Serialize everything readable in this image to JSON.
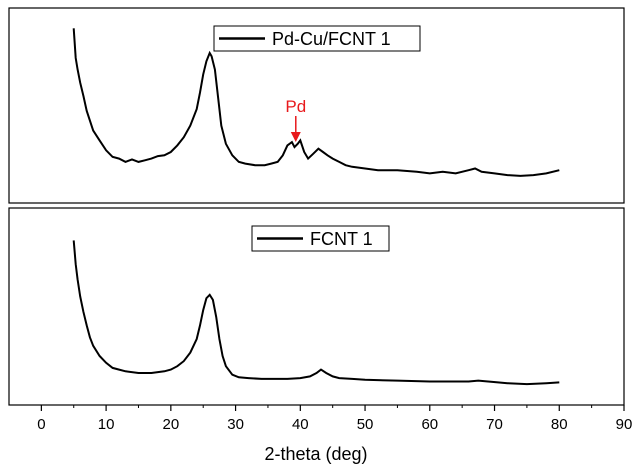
{
  "chart_data": {
    "type": "line",
    "xlabel": "2-theta (deg)",
    "xlim": [
      -5,
      90
    ],
    "x_ticks": [
      0,
      10,
      20,
      30,
      40,
      50,
      60,
      70,
      80,
      90
    ],
    "x_tick_labels": [
      "0",
      "10",
      "20",
      "30",
      "40",
      "50",
      "60",
      "70",
      "80",
      "90"
    ],
    "y_ticks_shown": false,
    "layout": "two stacked panels sharing x-axis",
    "line_color": "#000000",
    "annotation_color": "#e8191c",
    "panels": [
      {
        "legend": "Pd-Cu/FCNT 1",
        "legend_position": "top-center",
        "annotation": {
          "text": "Pd",
          "x": 39.3,
          "arrow": "down"
        },
        "ylim": [
          0,
          1
        ],
        "series": [
          {
            "name": "Pd-Cu/FCNT 1",
            "x": [
              5.0,
              5.3,
              5.6,
              6.0,
              6.5,
              7.0,
              7.5,
              8.0,
              9.0,
              10.0,
              11.0,
              12.0,
              13.0,
              14.0,
              15.0,
              16.0,
              17.0,
              18.0,
              19.0,
              20.0,
              21.0,
              22.0,
              23.0,
              24.0,
              24.5,
              25.0,
              25.5,
              25.8,
              26.0,
              26.3,
              26.8,
              27.3,
              27.8,
              28.5,
              29.5,
              30.5,
              31.5,
              33.0,
              34.5,
              35.5,
              36.5,
              37.3,
              38.0,
              38.7,
              39.1,
              39.6,
              40.0,
              40.6,
              41.2,
              42.0,
              42.8,
              43.5,
              44.2,
              45.0,
              46.0,
              47.0,
              48.0,
              50.0,
              52.0,
              55.0,
              58.0,
              60.0,
              62.0,
              64.0,
              66.0,
              67.0,
              68.0,
              70.0,
              72.0,
              74.0,
              76.0,
              78.0,
              80.0
            ],
            "y": [
              0.95,
              0.77,
              0.7,
              0.62,
              0.54,
              0.45,
              0.39,
              0.33,
              0.27,
              0.21,
              0.17,
              0.16,
              0.14,
              0.155,
              0.14,
              0.15,
              0.16,
              0.175,
              0.18,
              0.2,
              0.24,
              0.29,
              0.36,
              0.46,
              0.56,
              0.67,
              0.75,
              0.78,
              0.8,
              0.78,
              0.7,
              0.53,
              0.36,
              0.25,
              0.18,
              0.14,
              0.13,
              0.12,
              0.12,
              0.13,
              0.14,
              0.18,
              0.24,
              0.26,
              0.23,
              0.25,
              0.27,
              0.2,
              0.16,
              0.19,
              0.22,
              0.2,
              0.18,
              0.16,
              0.14,
              0.12,
              0.11,
              0.1,
              0.09,
              0.09,
              0.08,
              0.07,
              0.08,
              0.07,
              0.09,
              0.1,
              0.08,
              0.07,
              0.06,
              0.055,
              0.06,
              0.07,
              0.09
            ]
          }
        ]
      },
      {
        "legend": "FCNT 1",
        "legend_position": "top-center",
        "ylim": [
          0,
          1
        ],
        "series": [
          {
            "name": "FCNT 1",
            "x": [
              5.0,
              5.3,
              5.6,
              6.0,
              6.5,
              7.0,
              7.5,
              8.0,
              9.0,
              10.0,
              11.0,
              12.0,
              13.0,
              15.0,
              17.0,
              19.0,
              20.0,
              21.0,
              22.0,
              23.0,
              24.0,
              24.5,
              25.0,
              25.5,
              26.0,
              26.5,
              27.0,
              27.5,
              28.0,
              28.5,
              29.5,
              30.5,
              32.0,
              34.0,
              36.0,
              38.0,
              40.0,
              41.5,
              42.5,
              43.2,
              44.0,
              45.0,
              46.0,
              48.0,
              50.0,
              55.0,
              60.0,
              63.0,
              66.0,
              67.5,
              69.0,
              72.0,
              75.0,
              78.0,
              80.0
            ],
            "y": [
              0.88,
              0.74,
              0.65,
              0.55,
              0.46,
              0.38,
              0.31,
              0.26,
              0.2,
              0.16,
              0.13,
              0.12,
              0.11,
              0.1,
              0.1,
              0.11,
              0.12,
              0.14,
              0.17,
              0.22,
              0.3,
              0.38,
              0.47,
              0.54,
              0.56,
              0.53,
              0.43,
              0.3,
              0.2,
              0.14,
              0.09,
              0.075,
              0.07,
              0.065,
              0.065,
              0.065,
              0.07,
              0.08,
              0.1,
              0.12,
              0.1,
              0.08,
              0.07,
              0.065,
              0.06,
              0.055,
              0.05,
              0.05,
              0.05,
              0.055,
              0.05,
              0.04,
              0.035,
              0.04,
              0.045
            ]
          }
        ]
      }
    ]
  }
}
